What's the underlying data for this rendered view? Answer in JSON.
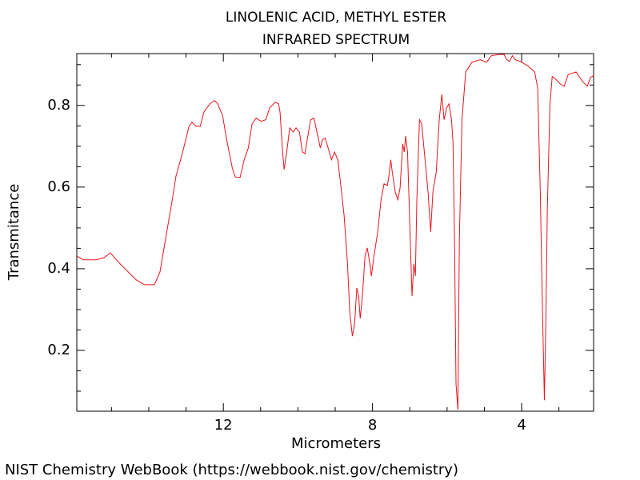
{
  "chart_data": {
    "type": "line",
    "title": "LINOLENIC ACID, METHYL ESTER",
    "subtitle": "INFRARED SPECTRUM",
    "x_label": "Micrometers",
    "y_label": "Transmitance",
    "footer": "NIST Chemistry WebBook (https://webbook.nist.gov/chemistry)",
    "xlim": [
      15.93,
      2.07
    ],
    "ylim": [
      0.051,
      0.927
    ],
    "xticks": [
      12,
      8,
      4
    ],
    "yticks": [
      0.2,
      0.4,
      0.6,
      0.8
    ],
    "xminorticks": [
      15,
      14,
      13,
      11,
      10,
      9,
      7,
      6,
      5,
      3
    ],
    "yminorticks": [
      0.1,
      0.15,
      0.25,
      0.3,
      0.35,
      0.45,
      0.5,
      0.55,
      0.65,
      0.7,
      0.75,
      0.85,
      0.9
    ],
    "series": [
      {
        "color": "#e8141c",
        "x": [
          15.93,
          15.76,
          15.41,
          15.2,
          15.03,
          14.92,
          14.77,
          14.55,
          14.34,
          14.12,
          13.85,
          13.7,
          13.59,
          13.48,
          13.37,
          13.27,
          13.09,
          12.92,
          12.84,
          12.73,
          12.62,
          12.52,
          12.36,
          12.24,
          12.15,
          12.02,
          11.91,
          11.76,
          11.68,
          11.55,
          11.44,
          11.33,
          11.23,
          11.12,
          10.99,
          10.86,
          10.76,
          10.61,
          10.52,
          10.48,
          10.41,
          10.37,
          10.3,
          10.22,
          10.13,
          10.05,
          9.96,
          9.88,
          9.81,
          9.75,
          9.66,
          9.57,
          9.49,
          9.4,
          9.34,
          9.27,
          9.19,
          9.1,
          9.02,
          8.93,
          8.85,
          8.76,
          8.67,
          8.61,
          8.54,
          8.48,
          8.42,
          8.37,
          8.33,
          8.27,
          8.2,
          8.14,
          8.07,
          8.03,
          7.96,
          7.86,
          7.77,
          7.69,
          7.6,
          7.56,
          7.51,
          7.47,
          7.39,
          7.32,
          7.26,
          7.19,
          7.15,
          7.11,
          7.06,
          7.0,
          6.94,
          6.89,
          6.85,
          6.81,
          6.74,
          6.68,
          6.61,
          6.51,
          6.44,
          6.38,
          6.29,
          6.21,
          6.14,
          6.08,
          6.01,
          5.95,
          5.88,
          5.84,
          5.8,
          5.76,
          5.71,
          5.67,
          5.6,
          5.5,
          5.33,
          5.11,
          4.94,
          4.81,
          4.57,
          4.47,
          4.4,
          4.32,
          4.25,
          4.17,
          4.04,
          3.82,
          3.65,
          3.57,
          3.5,
          3.44,
          3.39,
          3.35,
          3.31,
          3.24,
          3.18,
          3.07,
          2.97,
          2.86,
          2.75,
          2.54,
          2.37,
          2.24,
          2.15,
          2.07
        ],
        "values": [
          0.431,
          0.422,
          0.422,
          0.427,
          0.439,
          0.427,
          0.412,
          0.392,
          0.373,
          0.361,
          0.361,
          0.392,
          0.451,
          0.51,
          0.569,
          0.627,
          0.686,
          0.749,
          0.759,
          0.749,
          0.749,
          0.784,
          0.804,
          0.812,
          0.804,
          0.775,
          0.716,
          0.647,
          0.624,
          0.624,
          0.667,
          0.696,
          0.755,
          0.769,
          0.761,
          0.765,
          0.794,
          0.808,
          0.804,
          0.784,
          0.686,
          0.643,
          0.686,
          0.745,
          0.735,
          0.745,
          0.735,
          0.686,
          0.682,
          0.716,
          0.765,
          0.769,
          0.735,
          0.696,
          0.716,
          0.72,
          0.696,
          0.667,
          0.686,
          0.667,
          0.604,
          0.529,
          0.412,
          0.294,
          0.235,
          0.265,
          0.353,
          0.333,
          0.278,
          0.333,
          0.431,
          0.451,
          0.412,
          0.382,
          0.431,
          0.49,
          0.569,
          0.608,
          0.604,
          0.627,
          0.667,
          0.637,
          0.588,
          0.569,
          0.598,
          0.706,
          0.686,
          0.725,
          0.686,
          0.51,
          0.333,
          0.412,
          0.382,
          0.569,
          0.765,
          0.755,
          0.686,
          0.588,
          0.49,
          0.588,
          0.637,
          0.765,
          0.827,
          0.765,
          0.794,
          0.804,
          0.765,
          0.706,
          0.471,
          0.118,
          0.055,
          0.471,
          0.765,
          0.882,
          0.906,
          0.912,
          0.906,
          0.922,
          0.925,
          0.925,
          0.912,
          0.908,
          0.922,
          0.912,
          0.908,
          0.896,
          0.882,
          0.843,
          0.588,
          0.294,
          0.078,
          0.275,
          0.549,
          0.804,
          0.871,
          0.863,
          0.853,
          0.847,
          0.876,
          0.882,
          0.859,
          0.847,
          0.869,
          0.873
        ]
      }
    ]
  }
}
